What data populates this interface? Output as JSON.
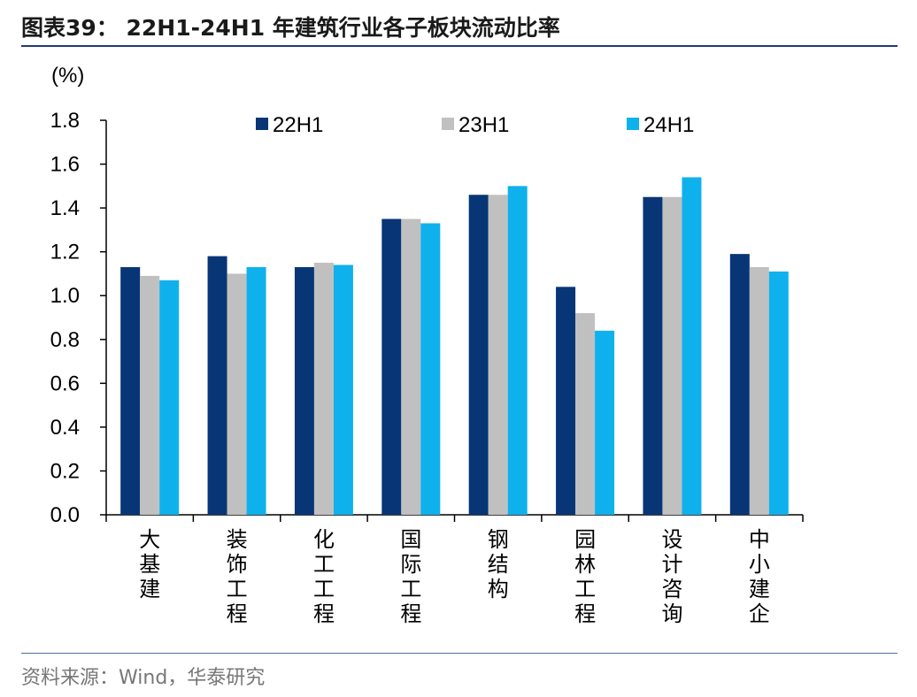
{
  "header": {
    "title": "图表39： 22H1-24H1 年建筑行业各子板块流动比率"
  },
  "footer": {
    "source": "资料来源：Wind，华泰研究"
  },
  "colors": {
    "s22H1": "#083575",
    "s23H1": "#c0c0c0",
    "s24H1": "#0fb1ed",
    "rule": "#1f3a7a"
  },
  "chart_data": {
    "type": "bar",
    "title": "22H1-24H1 年建筑行业各子板块流动比率",
    "unit_label": "(%)",
    "categories": [
      "大基建",
      "装饰工程",
      "化工工程",
      "国际工程",
      "钢结构",
      "园林工程",
      "设计咨询",
      "中小建企"
    ],
    "series": [
      {
        "name": "22H1",
        "values": [
          1.13,
          1.18,
          1.13,
          1.35,
          1.46,
          1.04,
          1.45,
          1.19
        ]
      },
      {
        "name": "23H1",
        "values": [
          1.09,
          1.1,
          1.15,
          1.35,
          1.46,
          0.92,
          1.45,
          1.13
        ]
      },
      {
        "name": "24H1",
        "values": [
          1.07,
          1.13,
          1.14,
          1.33,
          1.5,
          0.84,
          1.54,
          1.11
        ]
      }
    ],
    "ylim": [
      0,
      1.8
    ],
    "yticks": [
      "0.0",
      "0.2",
      "0.4",
      "0.6",
      "0.8",
      "1.0",
      "1.2",
      "1.4",
      "1.6",
      "1.8"
    ],
    "legend_position": "top",
    "grid": false
  }
}
